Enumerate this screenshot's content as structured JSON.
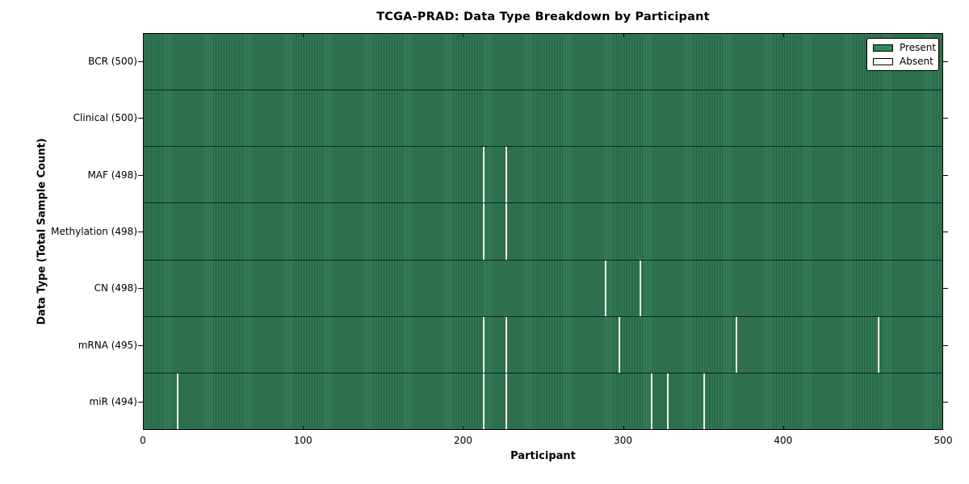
{
  "figure": {
    "title": "TCGA-PRAD: Data Type Breakdown by Participant",
    "xlabel": "Participant",
    "ylabel": "Data Type (Total Sample Count)"
  },
  "legend": {
    "items": [
      {
        "label": "Present",
        "color": "#2e8b57"
      },
      {
        "label": "Absent",
        "color": "#ffffff"
      }
    ]
  },
  "colors": {
    "present": "#2e8b57",
    "present_stripe_light": "#35815a",
    "present_stripe_dark": "#26603e",
    "absent": "#f4f4f2",
    "row_divider": "#10291a",
    "axis": "#000000"
  },
  "chart_data": {
    "type": "heatmap",
    "title": "TCGA-PRAD: Data Type Breakdown by Participant",
    "xlabel": "Participant",
    "ylabel": "Data Type (Total Sample Count)",
    "x_range": [
      0,
      500
    ],
    "x_ticks": [
      0,
      100,
      200,
      300,
      400,
      500
    ],
    "n_participants": 500,
    "grid": false,
    "legend_position": "upper right",
    "legend_entries": [
      "Present",
      "Absent"
    ],
    "rows": [
      {
        "label": "BCR (500)",
        "data_type": "BCR",
        "present_count": 500,
        "absent_participants": []
      },
      {
        "label": "Clinical (500)",
        "data_type": "Clinical",
        "present_count": 500,
        "absent_participants": []
      },
      {
        "label": "MAF (498)",
        "data_type": "MAF",
        "present_count": 498,
        "absent_participants": [
          213,
          227
        ]
      },
      {
        "label": "Methylation (498)",
        "data_type": "Methylation",
        "present_count": 498,
        "absent_participants": [
          213,
          227
        ]
      },
      {
        "label": "CN (498)",
        "data_type": "CN",
        "present_count": 498,
        "absent_participants": [
          289,
          311
        ]
      },
      {
        "label": "mRNA (495)",
        "data_type": "mRNA",
        "present_count": 495,
        "absent_participants": [
          213,
          227,
          298,
          371,
          460
        ]
      },
      {
        "label": "miR (494)",
        "data_type": "miR",
        "present_count": 494,
        "absent_participants": [
          21,
          213,
          227,
          318,
          328,
          351
        ]
      }
    ]
  }
}
